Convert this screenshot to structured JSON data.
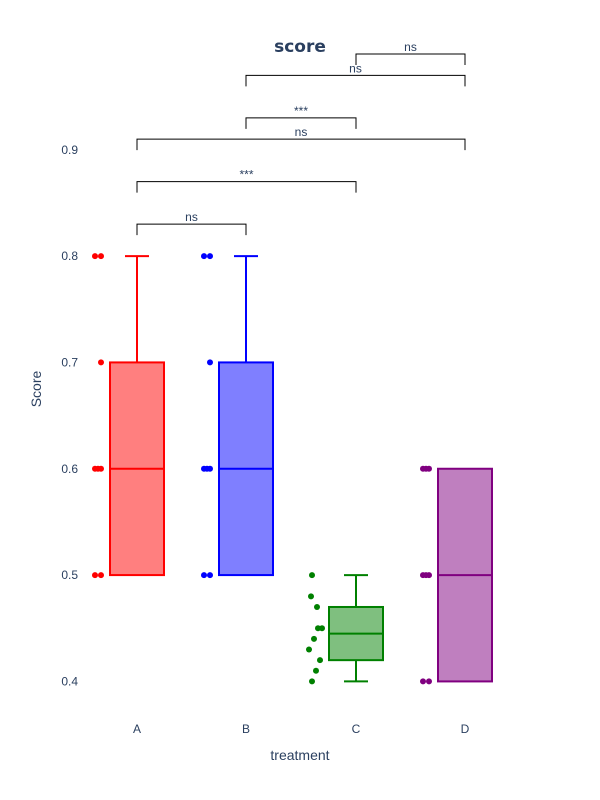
{
  "chart_data": {
    "type": "box",
    "title": "score",
    "xlabel": "treatment",
    "ylabel": "Score",
    "categories": [
      "A",
      "B",
      "C",
      "D"
    ],
    "y_ticks": [
      0.4,
      0.5,
      0.6,
      0.7,
      0.8,
      0.9
    ],
    "y_tick_labels": [
      "0.4",
      "0.5",
      "0.6",
      "0.7",
      "0.8",
      "0.9"
    ],
    "ylim": [
      0.375,
      0.975
    ],
    "grid": false,
    "series": [
      {
        "category": "A",
        "color": "#ff0000",
        "fill": "rgba(255,0,0,0.5)",
        "points": [
          0.5,
          0.5,
          0.6,
          0.6,
          0.6,
          0.7,
          0.8,
          0.8
        ],
        "min": 0.5,
        "q1": 0.5,
        "median": 0.6,
        "q3": 0.7,
        "max": 0.8
      },
      {
        "category": "B",
        "color": "#0000ff",
        "fill": "rgba(0,0,255,0.5)",
        "points": [
          0.5,
          0.5,
          0.6,
          0.6,
          0.6,
          0.7,
          0.8,
          0.8
        ],
        "min": 0.5,
        "q1": 0.5,
        "median": 0.6,
        "q3": 0.7,
        "max": 0.8
      },
      {
        "category": "C",
        "color": "#008000",
        "fill": "rgba(0,128,0,0.5)",
        "points": [
          0.4,
          0.41,
          0.42,
          0.43,
          0.44,
          0.45,
          0.45,
          0.47,
          0.48,
          0.5
        ],
        "min": 0.4,
        "q1": 0.42,
        "median": 0.445,
        "q3": 0.47,
        "max": 0.5
      },
      {
        "category": "D",
        "color": "#800080",
        "fill": "rgba(128,0,128,0.5)",
        "points": [
          0.4,
          0.4,
          0.5,
          0.5,
          0.5,
          0.6,
          0.6,
          0.6
        ],
        "min": 0.4,
        "q1": 0.4,
        "median": 0.5,
        "q3": 0.6,
        "max": 0.6
      }
    ],
    "comparisons": [
      {
        "from": "A",
        "to": "B",
        "y": 0.83,
        "label": "ns"
      },
      {
        "from": "A",
        "to": "C",
        "y": 0.87,
        "label": "***"
      },
      {
        "from": "A",
        "to": "D",
        "y": 0.91,
        "label": "ns"
      },
      {
        "from": "B",
        "to": "C",
        "y": 0.93,
        "label": "***"
      },
      {
        "from": "B",
        "to": "D",
        "y": 0.97,
        "label": "ns"
      },
      {
        "from": "C",
        "to": "D",
        "y": 0.99,
        "label": "ns"
      }
    ]
  }
}
